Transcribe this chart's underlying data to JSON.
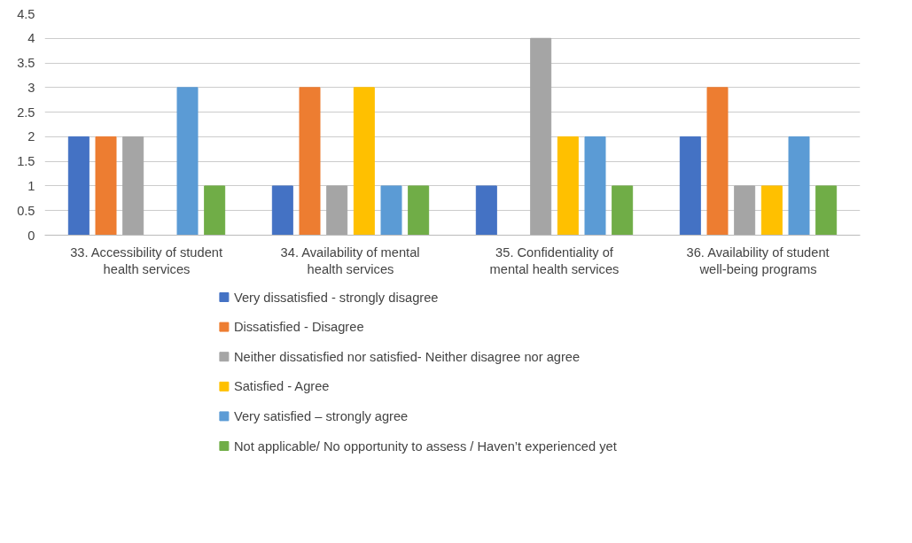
{
  "chart_data": {
    "type": "bar",
    "categories": [
      "33. Accessibility of student health services",
      "34. Availability of mental health services",
      "35. Confidentiality of mental health services",
      "36. Availability of student well-being programs"
    ],
    "series": [
      {
        "name": "Very dissatisfied - strongly disagree",
        "color": "#4472c4",
        "values": [
          2,
          1,
          1,
          2
        ]
      },
      {
        "name": "Dissatisfied - Disagree",
        "color": "#ed7d31",
        "values": [
          2,
          3,
          0,
          3
        ]
      },
      {
        "name": "Neither dissatisfied nor satisfied- Neither disagree nor agree",
        "color": "#a5a5a5",
        "values": [
          2,
          1,
          4,
          1
        ]
      },
      {
        "name": "Satisfied - Agree",
        "color": "#ffc000",
        "values": [
          0,
          3,
          2,
          1
        ]
      },
      {
        "name": "Very satisfied – strongly agree",
        "color": "#5b9bd5",
        "values": [
          3,
          1,
          2,
          2
        ]
      },
      {
        "name": "Not applicable/ No opportunity to assess / Haven’t experienced yet",
        "color": "#70ad47",
        "values": [
          1,
          1,
          1,
          1
        ]
      }
    ],
    "ylim": [
      0,
      4.5
    ],
    "yticks": [
      0,
      0.5,
      1,
      1.5,
      2,
      2.5,
      3,
      3.5,
      4,
      4.5
    ],
    "grid": "y",
    "legend": "bottom"
  }
}
